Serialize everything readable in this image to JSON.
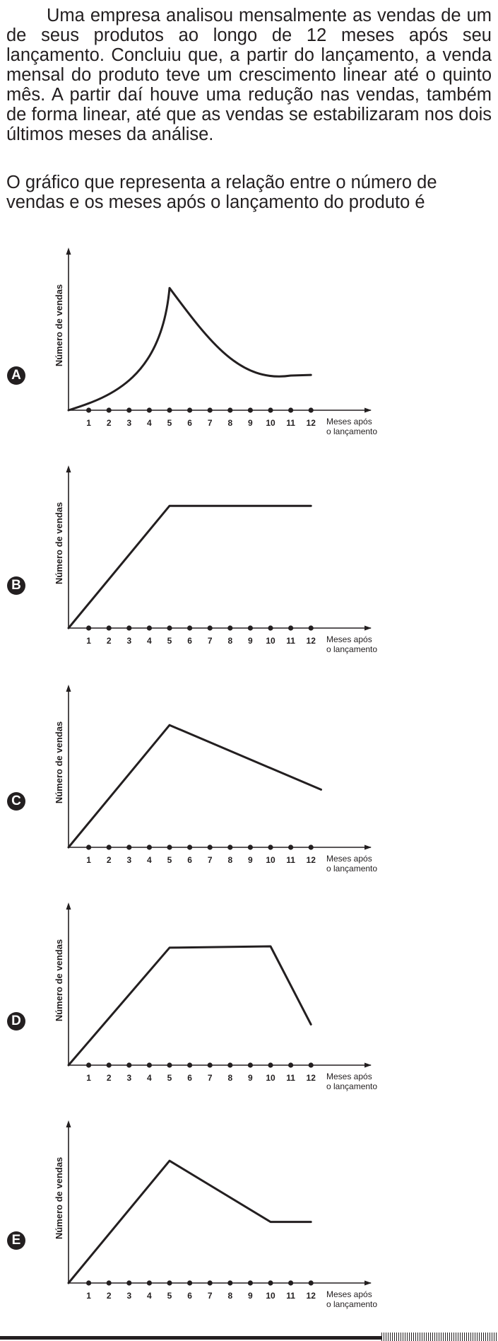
{
  "question": {
    "paragraph1": "Uma empresa analisou mensalmente as vendas de um de seus produtos ao longo de 12 meses após seu lançamento. Concluiu que, a partir do lançamento, a venda mensal do produto teve um crescimento linear até o quinto mês. A partir daí houve uma redução nas vendas, também de forma linear, até que as vendas se estabilizaram nos dois últimos meses da análise.",
    "paragraph2": "O gráfico que representa a relação entre o número de vendas e os meses após o lançamento do produto é"
  },
  "axis": {
    "ylabel": "Número de vendas",
    "xlabel_line1": "Meses após",
    "xlabel_line2": "o lançamento",
    "ticks": [
      "1",
      "2",
      "3",
      "4",
      "5",
      "6",
      "7",
      "8",
      "9",
      "10",
      "11",
      "12"
    ]
  },
  "options": [
    {
      "letter": "A"
    },
    {
      "letter": "B"
    },
    {
      "letter": "C"
    },
    {
      "letter": "D"
    },
    {
      "letter": "E"
    }
  ],
  "chart_data": [
    {
      "type": "line",
      "label": "A",
      "curve": "exponential growth to month 5, then decaying decrease",
      "x": [
        0,
        1,
        2,
        3,
        4,
        5,
        6,
        7,
        8,
        9,
        10,
        11,
        12
      ],
      "y": [
        0,
        1.4,
        3.0,
        5.0,
        8.2,
        18.0,
        13.2,
        10.0,
        7.8,
        6.4,
        5.5,
        5.1,
        5.1
      ]
    },
    {
      "type": "line",
      "label": "B",
      "x": [
        0,
        5,
        12
      ],
      "y": [
        0,
        18,
        18
      ]
    },
    {
      "type": "line",
      "label": "C",
      "x": [
        0,
        5,
        12.5
      ],
      "y": [
        0,
        18,
        8.5
      ]
    },
    {
      "type": "line",
      "label": "D",
      "x": [
        0,
        5,
        10,
        12
      ],
      "y": [
        0,
        17.3,
        17.5,
        6
      ]
    },
    {
      "type": "line",
      "label": "E",
      "x": [
        0,
        5,
        10,
        12
      ],
      "y": [
        0,
        18,
        9,
        9
      ]
    }
  ]
}
